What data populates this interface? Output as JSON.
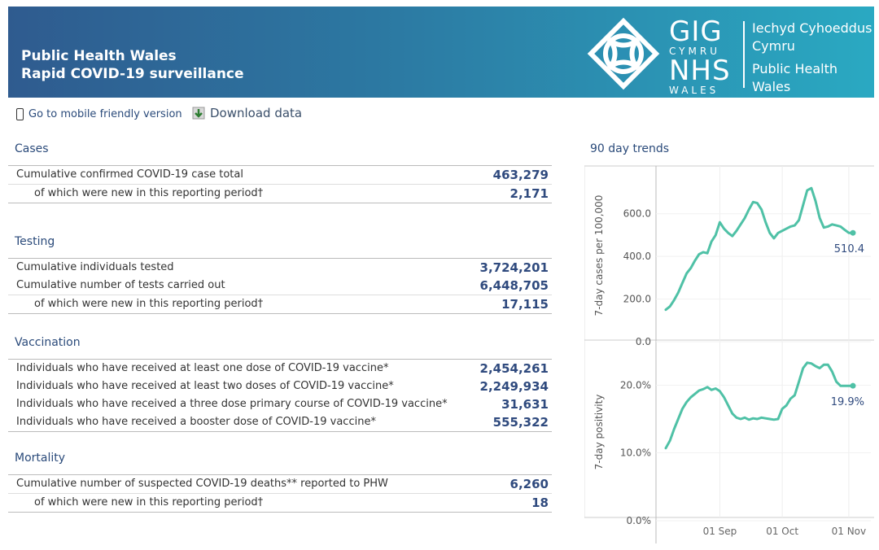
{
  "header": {
    "title_line1": "Public Health Wales",
    "title_line2": "Rapid COVID-19 surveillance",
    "gig_line1": "GIG",
    "gig_line2": "CYMRU",
    "nhs_line1": "NHS",
    "nhs_line2": "WALES",
    "brand_cy1": "Iechyd Cyhoeddus",
    "brand_cy2": "Cymru",
    "brand_en1": "Public Health",
    "brand_en2": "Wales"
  },
  "toolbar": {
    "mobile_label": "Go to mobile friendly version",
    "download_label": "Download data",
    "icons": [
      "phone-icon",
      "download-icon"
    ]
  },
  "sections": {
    "cases": {
      "title": "Cases",
      "rows": [
        {
          "label": "Cumulative confirmed COVID-19 case total",
          "value": "463,279"
        },
        {
          "label": "of which were new in this reporting period†",
          "value": "2,171"
        }
      ]
    },
    "testing": {
      "title": "Testing",
      "rows": [
        {
          "label": "Cumulative individuals tested",
          "value": "3,724,201"
        },
        {
          "label": "Cumulative number of tests carried out",
          "value": "6,448,705"
        },
        {
          "label": "of which were new in this reporting period†",
          "value": "17,115"
        }
      ]
    },
    "vaccination": {
      "title": "Vaccination",
      "rows": [
        {
          "label": "Individuals who have received at least one dose of COVID-19 vaccine*",
          "value": "2,454,261"
        },
        {
          "label": "Individuals who have received at least two doses of COVID-19 vaccine*",
          "value": "2,249,934"
        },
        {
          "label": "Individuals who have received a three dose primary course of COVID-19 vaccine*",
          "value": "31,631"
        },
        {
          "label": "Individuals who have received a booster dose of COVID-19 vaccine*",
          "value": "555,322"
        }
      ]
    },
    "mortality": {
      "title": "Mortality",
      "rows": [
        {
          "label": "Cumulative number of suspected COVID-19 deaths** reported to PHW",
          "value": "6,260"
        },
        {
          "label": "of which were new in this reporting period†",
          "value": "18"
        }
      ]
    }
  },
  "trends": {
    "title": "90 day trends",
    "line_color": "#4fc1a6",
    "x_ticks": [
      "01 Sep",
      "01 Oct",
      "01 Nov"
    ]
  },
  "chart_data": [
    {
      "type": "line",
      "ylabel": "7-day cases per 100,000",
      "yticks": [
        "0.0",
        "200.0",
        "400.0",
        "600.0"
      ],
      "ylim": [
        0,
        740
      ],
      "end_label": "510.4",
      "x": [
        "2021-08-06",
        "2021-08-08",
        "2021-08-10",
        "2021-08-12",
        "2021-08-14",
        "2021-08-16",
        "2021-08-18",
        "2021-08-20",
        "2021-08-22",
        "2021-08-24",
        "2021-08-26",
        "2021-08-28",
        "2021-08-30",
        "2021-09-01",
        "2021-09-03",
        "2021-09-05",
        "2021-09-07",
        "2021-09-09",
        "2021-09-11",
        "2021-09-13",
        "2021-09-15",
        "2021-09-17",
        "2021-09-19",
        "2021-09-21",
        "2021-09-23",
        "2021-09-25",
        "2021-09-27",
        "2021-09-29",
        "2021-10-01",
        "2021-10-03",
        "2021-10-05",
        "2021-10-07",
        "2021-10-09",
        "2021-10-11",
        "2021-10-13",
        "2021-10-15",
        "2021-10-17",
        "2021-10-19",
        "2021-10-21",
        "2021-10-23",
        "2021-10-25",
        "2021-10-27",
        "2021-10-29",
        "2021-10-31",
        "2021-11-02",
        "2021-11-04"
      ],
      "values": [
        150,
        165,
        195,
        230,
        275,
        320,
        345,
        380,
        410,
        420,
        415,
        470,
        500,
        560,
        530,
        510,
        495,
        520,
        550,
        580,
        620,
        655,
        650,
        620,
        560,
        510,
        485,
        510,
        520,
        530,
        540,
        545,
        570,
        640,
        710,
        720,
        660,
        580,
        535,
        540,
        550,
        545,
        540,
        525,
        510.4,
        510.4
      ]
    },
    {
      "type": "line",
      "ylabel": "7-day positivity",
      "yticks": [
        "0.0%",
        "10.0%",
        "20.0%"
      ],
      "ylim": [
        0,
        24
      ],
      "end_label": "19.9%",
      "x": [
        "2021-08-06",
        "2021-08-08",
        "2021-08-10",
        "2021-08-12",
        "2021-08-14",
        "2021-08-16",
        "2021-08-18",
        "2021-08-20",
        "2021-08-22",
        "2021-08-24",
        "2021-08-26",
        "2021-08-28",
        "2021-08-30",
        "2021-09-01",
        "2021-09-03",
        "2021-09-05",
        "2021-09-07",
        "2021-09-09",
        "2021-09-11",
        "2021-09-13",
        "2021-09-15",
        "2021-09-17",
        "2021-09-19",
        "2021-09-21",
        "2021-09-23",
        "2021-09-25",
        "2021-09-27",
        "2021-09-29",
        "2021-10-01",
        "2021-10-03",
        "2021-10-05",
        "2021-10-07",
        "2021-10-09",
        "2021-10-11",
        "2021-10-13",
        "2021-10-15",
        "2021-10-17",
        "2021-10-19",
        "2021-10-21",
        "2021-10-23",
        "2021-10-25",
        "2021-10-27",
        "2021-10-29",
        "2021-10-31",
        "2021-11-02",
        "2021-11-04"
      ],
      "values": [
        10.7,
        11.8,
        13.5,
        15.0,
        16.5,
        17.5,
        18.2,
        18.7,
        19.2,
        19.4,
        19.7,
        19.3,
        19.5,
        19.1,
        18.2,
        17.0,
        15.8,
        15.2,
        15.0,
        15.2,
        14.9,
        15.1,
        15.0,
        15.2,
        15.1,
        15.0,
        14.9,
        15.0,
        16.5,
        17.0,
        18.0,
        18.5,
        20.5,
        22.5,
        23.3,
        23.2,
        22.8,
        22.5,
        23.0,
        23.0,
        22.0,
        20.5,
        19.9,
        19.9,
        19.9,
        19.9
      ]
    }
  ]
}
